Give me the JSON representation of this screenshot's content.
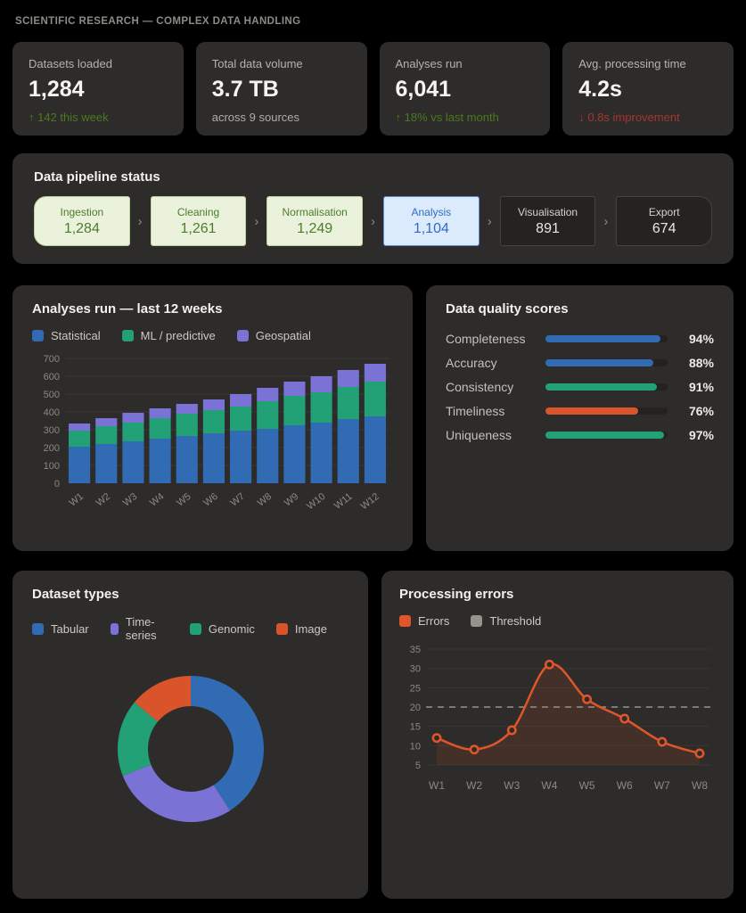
{
  "page_title": "SCIENTIFIC RESEARCH — COMPLEX DATA HANDLING",
  "colors": {
    "positive": "#4a7a1f",
    "negative": "#a4362e",
    "neutral": "#b0ada7",
    "grid": "#3a3835",
    "tick": "#8b8984",
    "panel": "#2e2c2a",
    "threshold": "#96938e"
  },
  "kpis": [
    {
      "label": "Datasets loaded",
      "value": "1,284",
      "delta": "↑ 142 this week",
      "delta_type": "positive"
    },
    {
      "label": "Total data volume",
      "value": "3.7 TB",
      "delta": "across 9 sources",
      "delta_type": "neutral"
    },
    {
      "label": "Analyses run",
      "value": "6,041",
      "delta": "↑ 18% vs last month",
      "delta_type": "positive"
    },
    {
      "label": "Avg. processing time",
      "value": "4.2s",
      "delta": "↓ 0.8s improvement",
      "delta_type": "negative"
    }
  ],
  "pipeline": {
    "title": "Data pipeline status",
    "separator": "›",
    "stages": [
      {
        "label": "Ingestion",
        "value": "1,284",
        "state": "done"
      },
      {
        "label": "Cleaning",
        "value": "1,261",
        "state": "done"
      },
      {
        "label": "Normalisation",
        "value": "1,249",
        "state": "done"
      },
      {
        "label": "Analysis",
        "value": "1,104",
        "state": "active"
      },
      {
        "label": "Visualisation",
        "value": "891",
        "state": "pending"
      },
      {
        "label": "Export",
        "value": "674",
        "state": "pending"
      }
    ]
  },
  "quality": {
    "title": "Data quality scores",
    "rows": [
      {
        "label": "Completeness",
        "value": 94,
        "display": "94%",
        "color": "#316bb3"
      },
      {
        "label": "Accuracy",
        "value": 88,
        "display": "88%",
        "color": "#316bb3"
      },
      {
        "label": "Consistency",
        "value": 91,
        "display": "91%",
        "color": "#21a175"
      },
      {
        "label": "Timeliness",
        "value": 76,
        "display": "76%",
        "color": "#d9542b"
      },
      {
        "label": "Uniqueness",
        "value": 97,
        "display": "97%",
        "color": "#21a175"
      }
    ]
  },
  "chart_data": [
    {
      "type": "bar",
      "stacked": true,
      "title": "Analyses run — last 12 weeks",
      "categories": [
        "W1",
        "W2",
        "W3",
        "W4",
        "W5",
        "W6",
        "W7",
        "W8",
        "W9",
        "W10",
        "W11",
        "W12"
      ],
      "series": [
        {
          "name": "Statistical",
          "color": "#316bb3",
          "values": [
            205,
            220,
            235,
            250,
            265,
            280,
            295,
            305,
            325,
            340,
            360,
            375
          ]
        },
        {
          "name": "ML / predictive",
          "color": "#21a175",
          "values": [
            90,
            100,
            105,
            115,
            125,
            130,
            135,
            155,
            165,
            170,
            180,
            195
          ]
        },
        {
          "name": "Geospatial",
          "color": "#7b72d6",
          "values": [
            40,
            45,
            55,
            55,
            55,
            60,
            70,
            75,
            80,
            90,
            95,
            100
          ]
        }
      ],
      "ylim": [
        0,
        700
      ],
      "yticks": [
        0,
        100,
        200,
        300,
        400,
        500,
        600,
        700
      ],
      "grid": true,
      "legend_position": "top"
    },
    {
      "type": "pie",
      "donut": true,
      "title": "Dataset types",
      "labels": [
        "Tabular",
        "Time-series",
        "Genomic",
        "Image"
      ],
      "values": [
        41,
        28,
        17,
        14
      ],
      "colors": [
        "#316bb3",
        "#7b72d6",
        "#21a175",
        "#d9542b"
      ],
      "legend_position": "top"
    },
    {
      "type": "line",
      "title": "Processing errors",
      "x": [
        "W1",
        "W2",
        "W3",
        "W4",
        "W5",
        "W6",
        "W7",
        "W8"
      ],
      "series": [
        {
          "name": "Errors",
          "color": "#e0552a",
          "values": [
            12,
            9,
            14,
            31,
            22,
            17,
            11,
            8
          ],
          "markers": true,
          "area": true
        },
        {
          "name": "Threshold",
          "color": "#96938e",
          "values": [
            20,
            20,
            20,
            20,
            20,
            20,
            20,
            20
          ],
          "dashed": true
        }
      ],
      "ylim": [
        5,
        35
      ],
      "yticks": [
        5,
        10,
        15,
        20,
        25,
        30,
        35
      ],
      "grid": true,
      "legend_position": "top"
    }
  ]
}
